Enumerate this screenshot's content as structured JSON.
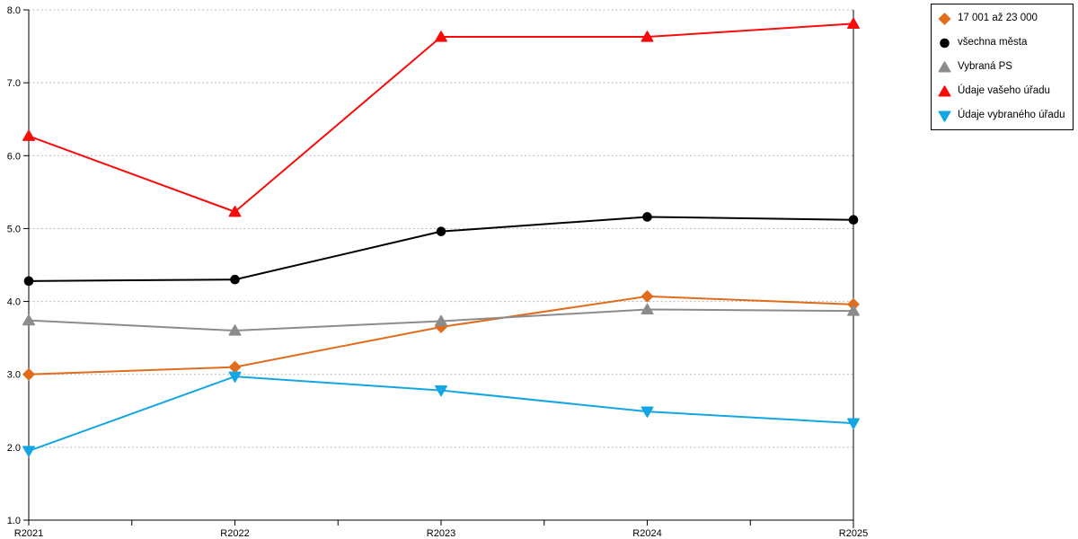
{
  "chart_data": {
    "type": "line",
    "title": "",
    "xlabel": "",
    "ylabel": "",
    "categories": [
      "R2021",
      "R2022",
      "R2023",
      "R2024",
      "R2025"
    ],
    "ylim": [
      1.0,
      8.0
    ],
    "yticks": [
      "1.0",
      "2.0",
      "3.0",
      "4.0",
      "5.0",
      "6.0",
      "7.0",
      "8.0"
    ],
    "grid": "horizontal-dotted",
    "grid_color": "#b8b8b8",
    "axis_color": "#000000",
    "background": "#ffffff",
    "legend_position": "top-right-outside",
    "series": [
      {
        "name": "17 001 až 23 000",
        "marker": "diamond",
        "color": "#E06C1C",
        "values": [
          3.0,
          3.1,
          3.65,
          4.07,
          3.96
        ]
      },
      {
        "name": "všechna města",
        "marker": "circle",
        "color": "#000000",
        "values": [
          4.28,
          4.3,
          4.96,
          5.16,
          5.12
        ]
      },
      {
        "name": "Vybraná PS",
        "marker": "triangle-up",
        "color": "#8C8C8C",
        "values": [
          3.74,
          3.6,
          3.73,
          3.89,
          3.87
        ]
      },
      {
        "name": "Údaje vašeho úřadu",
        "marker": "triangle-up",
        "color": "#F80B0B",
        "values": [
          6.27,
          5.23,
          7.63,
          7.63,
          7.81
        ]
      },
      {
        "name": "Údaje vybraného úřadu",
        "marker": "triangle-down",
        "color": "#14A6E4",
        "values": [
          1.95,
          2.97,
          2.78,
          2.49,
          2.33
        ]
      }
    ]
  }
}
